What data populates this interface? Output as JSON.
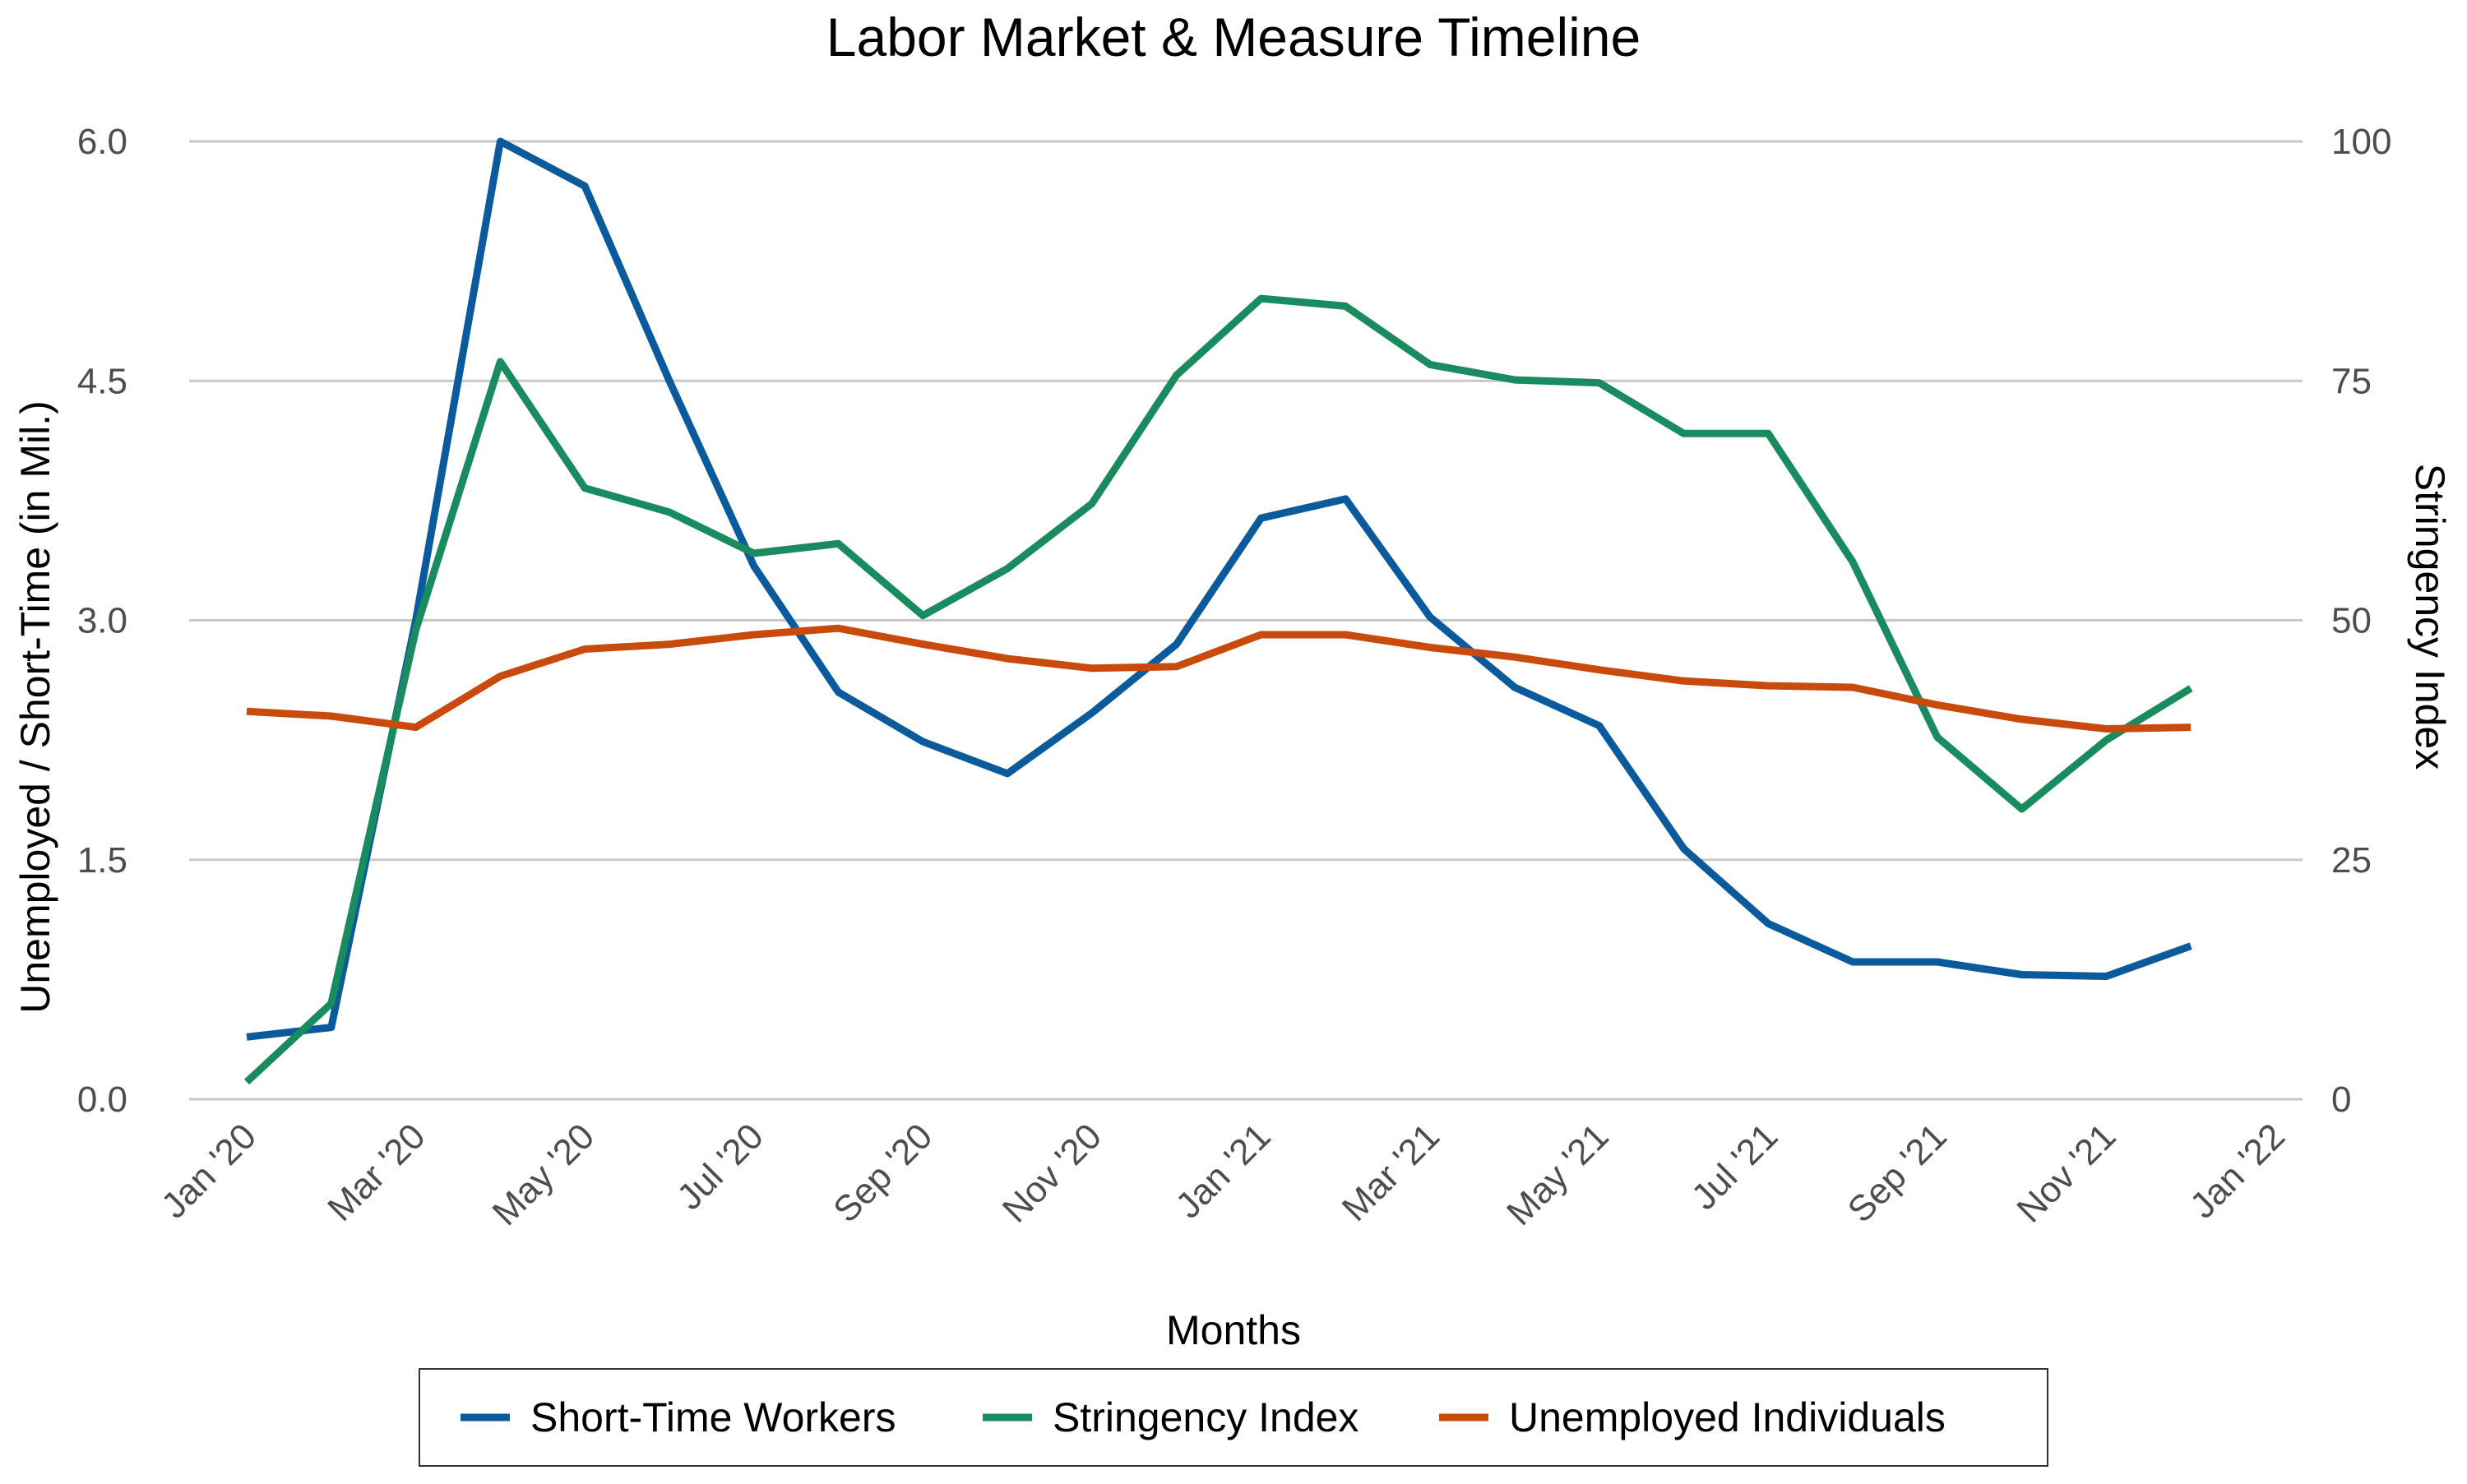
{
  "chart_data": {
    "type": "line",
    "title": "Labor Market & Measure Timeline",
    "xlabel": "Months",
    "ylabel_left": "Unemployed / Short-Time (in Mil.)",
    "ylabel_right": "Stringency Index",
    "x": [
      "2020-01",
      "2020-02",
      "2020-03",
      "2020-04",
      "2020-05",
      "2020-06",
      "2020-07",
      "2020-08",
      "2020-09",
      "2020-10",
      "2020-11",
      "2020-12",
      "2021-01",
      "2021-02",
      "2021-03",
      "2021-04",
      "2021-05",
      "2021-06",
      "2021-07",
      "2021-08",
      "2021-09",
      "2021-10",
      "2021-11",
      "2021-12"
    ],
    "x_ticks": [
      {
        "value": "2020-01",
        "label": "Jan '20"
      },
      {
        "value": "2020-03",
        "label": "Mar '20"
      },
      {
        "value": "2020-05",
        "label": "May '20"
      },
      {
        "value": "2020-07",
        "label": "Jul '20"
      },
      {
        "value": "2020-09",
        "label": "Sep '20"
      },
      {
        "value": "2020-11",
        "label": "Nov '20"
      },
      {
        "value": "2021-01",
        "label": "Jan '21"
      },
      {
        "value": "2021-03",
        "label": "Mar '21"
      },
      {
        "value": "2021-05",
        "label": "May '21"
      },
      {
        "value": "2021-07",
        "label": "Jul '21"
      },
      {
        "value": "2021-09",
        "label": "Sep '21"
      },
      {
        "value": "2021-11",
        "label": "Nov '21"
      },
      {
        "value": "2022-01",
        "label": "Jan '22"
      }
    ],
    "xlim": [
      "2020-01",
      "2022-01"
    ],
    "ylim_left": [
      0,
      6
    ],
    "yticks_left": [
      {
        "value": 0,
        "label": "0.0"
      },
      {
        "value": 1.5,
        "label": "1.5"
      },
      {
        "value": 3,
        "label": "3.0"
      },
      {
        "value": 4.5,
        "label": "4.5"
      },
      {
        "value": 6,
        "label": "6.0"
      }
    ],
    "ylim_right": [
      0,
      100
    ],
    "yticks_right": [
      {
        "value": 0,
        "label": "0"
      },
      {
        "value": 25,
        "label": "25"
      },
      {
        "value": 50,
        "label": "50"
      },
      {
        "value": 75,
        "label": "75"
      },
      {
        "value": 100,
        "label": "100"
      }
    ],
    "grid": "horizontal",
    "legend_position": "bottom",
    "series": [
      {
        "name": "Short-Time Workers",
        "axis": "left",
        "color": "#0a5a9c",
        "values": [
          0.39,
          0.45,
          3.0,
          6.0,
          5.72,
          4.5,
          3.34,
          2.55,
          2.24,
          2.04,
          2.42,
          2.85,
          3.64,
          3.76,
          3.02,
          2.58,
          2.34,
          1.57,
          1.1,
          0.86,
          0.86,
          0.78,
          0.77,
          0.96
        ]
      },
      {
        "name": "Stringency Index",
        "axis": "right",
        "color": "#1a8b5e",
        "values": [
          1.8,
          10.0,
          49.0,
          77.0,
          63.8,
          61.3,
          57.0,
          58.0,
          50.5,
          55.4,
          62.2,
          75.6,
          83.6,
          82.8,
          76.7,
          75.1,
          74.8,
          69.5,
          69.5,
          56.1,
          37.8,
          30.3,
          37.5,
          42.9
        ]
      },
      {
        "name": "Unemployed Individuals",
        "axis": "left",
        "color": "#c84a0c",
        "values": [
          2.43,
          2.4,
          2.33,
          2.65,
          2.82,
          2.85,
          2.91,
          2.95,
          2.85,
          2.76,
          2.7,
          2.71,
          2.91,
          2.91,
          2.83,
          2.77,
          2.69,
          2.62,
          2.59,
          2.58,
          2.47,
          2.38,
          2.32,
          2.33
        ]
      }
    ]
  }
}
